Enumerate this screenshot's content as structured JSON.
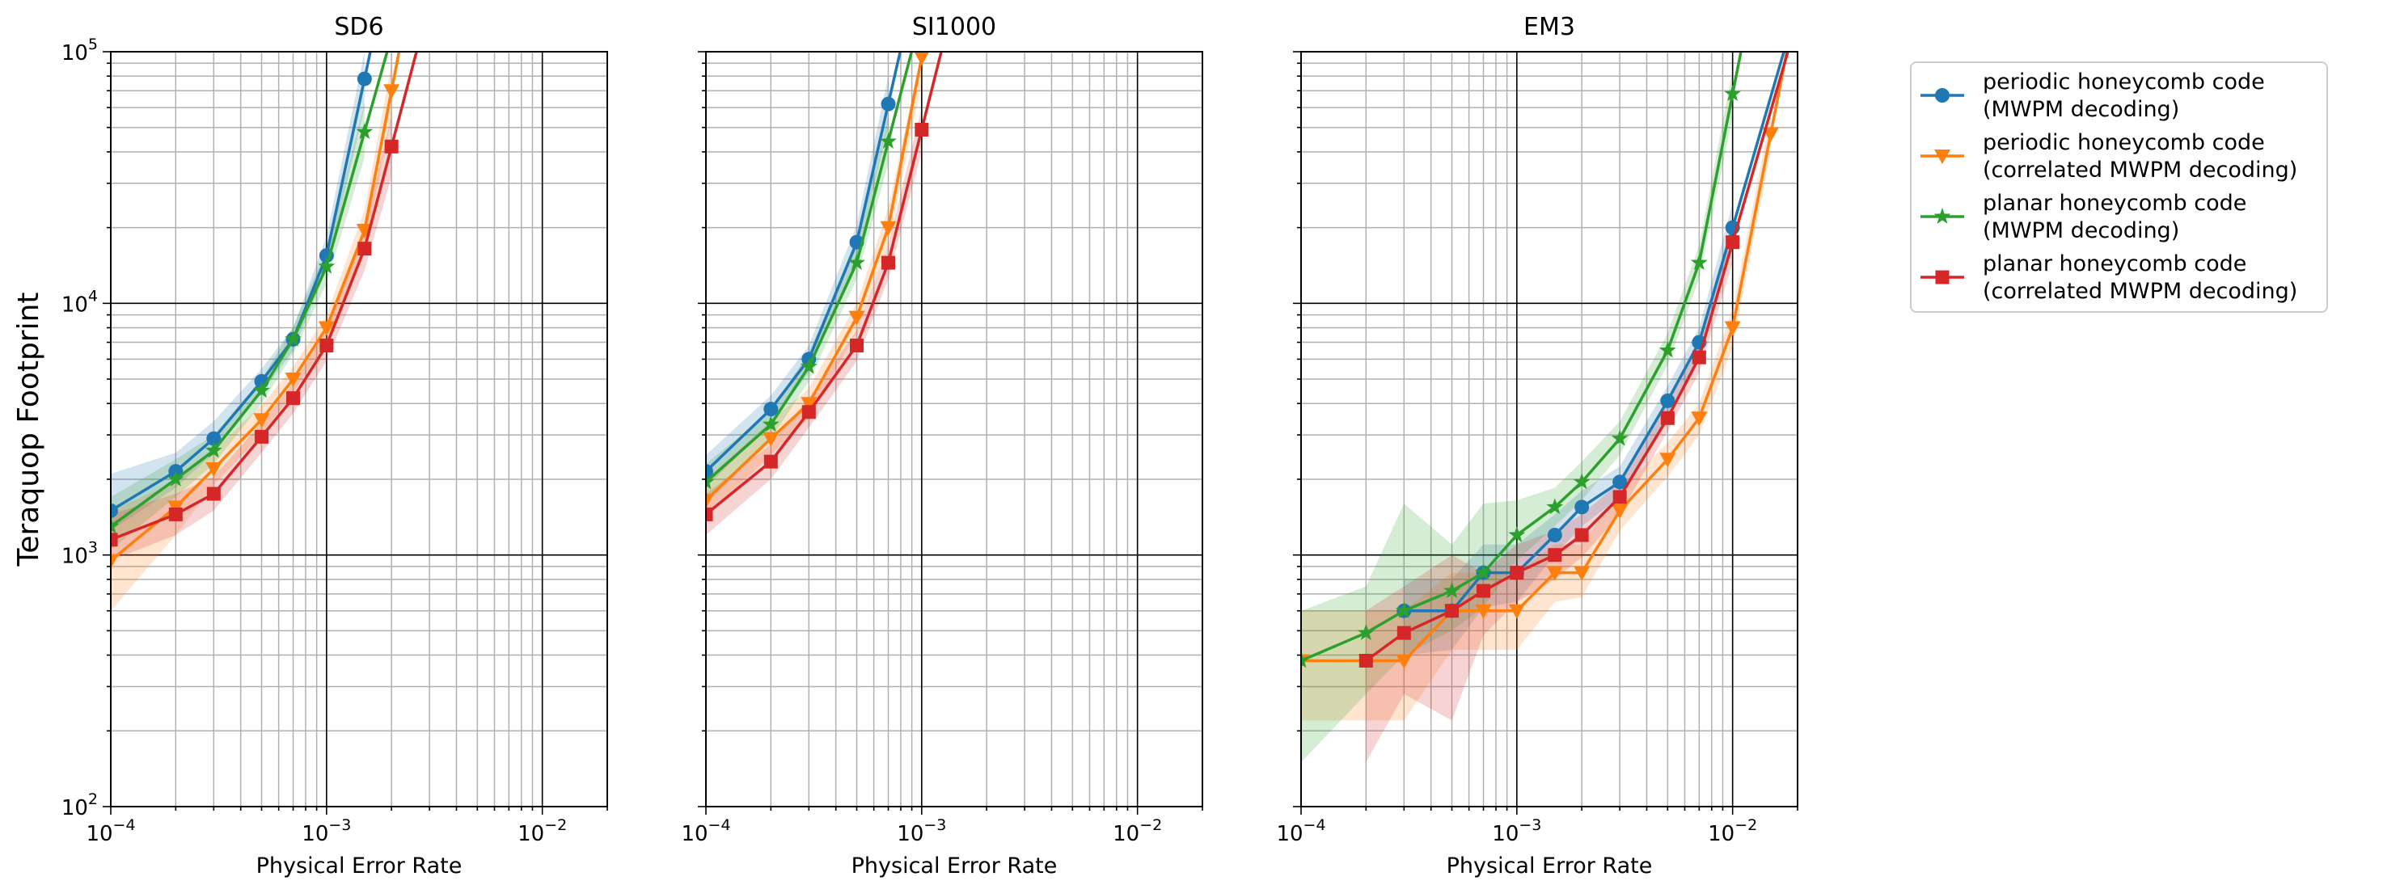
{
  "chart_data": {
    "type": "line",
    "ylabel": "Teraquop Footprint",
    "xscale": "log",
    "yscale": "log",
    "xlim": [
      0.0001,
      0.02
    ],
    "ylim": [
      100,
      100000
    ],
    "x_ticks": [
      {
        "base": "10",
        "exp": "−4",
        "value": 0.0001
      },
      {
        "base": "10",
        "exp": "−3",
        "value": 0.001
      },
      {
        "base": "10",
        "exp": "−2",
        "value": 0.01
      }
    ],
    "y_ticks": [
      {
        "base": "10",
        "exp": "2",
        "value": 100
      },
      {
        "base": "10",
        "exp": "3",
        "value": 1000
      },
      {
        "base": "10",
        "exp": "4",
        "value": 10000
      },
      {
        "base": "10",
        "exp": "5",
        "value": 100000
      }
    ],
    "grid": true,
    "legend_position": "right",
    "series_styles": [
      {
        "label_line1": "periodic honeycomb code",
        "label_line2": "(MWPM decoding)",
        "color": "#1f77b4",
        "marker": "circle"
      },
      {
        "label_line1": "periodic honeycomb code",
        "label_line2": "(correlated MWPM decoding)",
        "color": "#ff7f0e",
        "marker": "triangle-down"
      },
      {
        "label_line1": "planar honeycomb code",
        "label_line2": "(MWPM decoding)",
        "color": "#2ca02c",
        "marker": "star"
      },
      {
        "label_line1": "planar honeycomb code",
        "label_line2": "(correlated MWPM decoding)",
        "color": "#d62728",
        "marker": "square"
      }
    ],
    "panels": [
      {
        "title": "SD6",
        "xlabel": "Physical Error Rate",
        "show_ylabel": true,
        "series": [
          {
            "x": [
              0.0001,
              0.0002,
              0.0003,
              0.0005,
              0.0007,
              0.001,
              0.0015
            ],
            "y": [
              1500,
              2150,
              2900,
              4900,
              7200,
              15500,
              78000
            ],
            "lo": [
              1250,
              1850,
              2550,
              4400,
              6500,
              13500,
              60000
            ],
            "hi": [
              2100,
              2550,
              3400,
              5500,
              8000,
              18500,
              100000
            ]
          },
          {
            "x": [
              0.0001,
              0.0002,
              0.0003,
              0.0005,
              0.0007,
              0.001,
              0.0015,
              0.002
            ],
            "y": [
              950,
              1550,
              2200,
              3450,
              5000,
              8000,
              19500,
              70000
            ],
            "lo": [
              600,
              1200,
              1900,
              3000,
              4400,
              7000,
              16000,
              55000
            ],
            "hi": [
              1500,
              1950,
              2600,
              3950,
              5600,
              9000,
              23500,
              90000
            ]
          },
          {
            "x": [
              0.0001,
              0.0002,
              0.0003,
              0.0005,
              0.0007,
              0.001,
              0.0015
            ],
            "y": [
              1300,
              2000,
              2600,
              4500,
              7200,
              14000,
              48000
            ],
            "lo": [
              1050,
              1700,
              2300,
              4000,
              6300,
              12000,
              38000
            ],
            "hi": [
              1700,
              2400,
              3000,
              5000,
              8100,
              16500,
              62000
            ]
          },
          {
            "x": [
              0.0001,
              0.0002,
              0.0003,
              0.0005,
              0.0007,
              0.001,
              0.0015,
              0.002
            ],
            "y": [
              1150,
              1450,
              1750,
              2950,
              4200,
              6800,
              16500,
              42000
            ],
            "lo": [
              950,
              1200,
              1500,
              2550,
              3650,
              5900,
              13500,
              32000
            ],
            "hi": [
              1450,
              1750,
              2050,
              3350,
              4800,
              7800,
              20000,
              56000
            ]
          }
        ]
      },
      {
        "title": "SI1000",
        "xlabel": "Physical Error Rate",
        "show_ylabel": false,
        "series": [
          {
            "x": [
              0.0001,
              0.0002,
              0.0003,
              0.0005,
              0.0007
            ],
            "y": [
              2150,
              3800,
              6000,
              17500,
              62000
            ],
            "lo": [
              1850,
              3350,
              5300,
              15000,
              50000
            ],
            "hi": [
              2500,
              4300,
              6800,
              20500,
              80000
            ]
          },
          {
            "x": [
              0.0001,
              0.0002,
              0.0003,
              0.0005,
              0.0007,
              0.001
            ],
            "y": [
              1650,
              2900,
              4000,
              8800,
              20000,
              95000
            ],
            "lo": [
              1400,
              2500,
              3500,
              7700,
              17000,
              75000
            ],
            "hi": [
              2000,
              3400,
              4600,
              10000,
              24000,
              100000
            ]
          },
          {
            "x": [
              0.0001,
              0.0002,
              0.0003,
              0.0005,
              0.0007
            ],
            "y": [
              1950,
              3300,
              5600,
              14500,
              44000
            ],
            "lo": [
              1650,
              2900,
              4900,
              12500,
              36000
            ],
            "hi": [
              2300,
              3750,
              6400,
              17000,
              56000
            ]
          },
          {
            "x": [
              0.0001,
              0.0002,
              0.0003,
              0.0005,
              0.0007,
              0.001
            ],
            "y": [
              1450,
              2350,
              3700,
              6800,
              14500,
              49000
            ],
            "lo": [
              1200,
              2000,
              3200,
              5900,
              12500,
              40000
            ],
            "hi": [
              1750,
              2750,
              4200,
              7800,
              17000,
              60000
            ]
          }
        ]
      },
      {
        "title": "EM3",
        "xlabel": "Physical Error Rate",
        "show_ylabel": false,
        "series": [
          {
            "x": [
              0.0003,
              0.0005,
              0.0007,
              0.001,
              0.0015,
              0.002,
              0.003,
              0.005,
              0.007,
              0.01
            ],
            "y": [
              600,
              600,
              850,
              850,
              1200,
              1550,
              1950,
              4100,
              7000,
              20000
            ],
            "lo": [
              400,
              420,
              620,
              650,
              1000,
              1300,
              1700,
              3600,
              6100,
              16500
            ],
            "hi": [
              800,
              800,
              1100,
              1100,
              1450,
              1800,
              2250,
              4700,
              8000,
              25000
            ]
          },
          {
            "x": [
              0.0001,
              0.0002,
              0.0003,
              0.0005,
              0.0007,
              0.001,
              0.0015,
              0.002,
              0.003,
              0.005,
              0.007,
              0.01,
              0.015
            ],
            "y": [
              380,
              380,
              380,
              600,
              600,
              600,
              850,
              850,
              1500,
              2400,
              3500,
              8000,
              47000
            ],
            "lo": [
              220,
              220,
              220,
              420,
              420,
              420,
              650,
              680,
              1250,
              2050,
              3000,
              6700,
              40000
            ],
            "hi": [
              600,
              600,
              600,
              850,
              850,
              850,
              1100,
              1100,
              1800,
              2800,
              4000,
              9500,
              56000
            ]
          },
          {
            "x": [
              0.0001,
              0.0002,
              0.0003,
              0.0005,
              0.0007,
              0.001,
              0.0015,
              0.002,
              0.003,
              0.005,
              0.007,
              0.01
            ],
            "y": [
              380,
              490,
              600,
              720,
              850,
              1200,
              1550,
              1950,
              2900,
              6500,
              14500,
              68000
            ],
            "lo": [
              150,
              280,
              400,
              500,
              620,
              950,
              1300,
              1650,
              2500,
              5700,
              12500,
              55000
            ],
            "hi": [
              600,
              750,
              1600,
              1100,
              1600,
              1650,
              1850,
              2350,
              3400,
              7600,
              17000,
              85000
            ]
          },
          {
            "x": [
              0.0002,
              0.0003,
              0.0005,
              0.0007,
              0.001,
              0.0015,
              0.002,
              0.003,
              0.005,
              0.007,
              0.01
            ],
            "y": [
              380,
              490,
              600,
              720,
              850,
              1000,
              1200,
              1700,
              3500,
              6100,
              17500
            ],
            "lo": [
              150,
              280,
              220,
              480,
              650,
              800,
              980,
              1450,
              3100,
              5300,
              14500
            ],
            "hi": [
              600,
              750,
              1000,
              850,
              1100,
              1250,
              1450,
              1950,
              4000,
              7000,
              21000
            ]
          }
        ]
      }
    ]
  }
}
